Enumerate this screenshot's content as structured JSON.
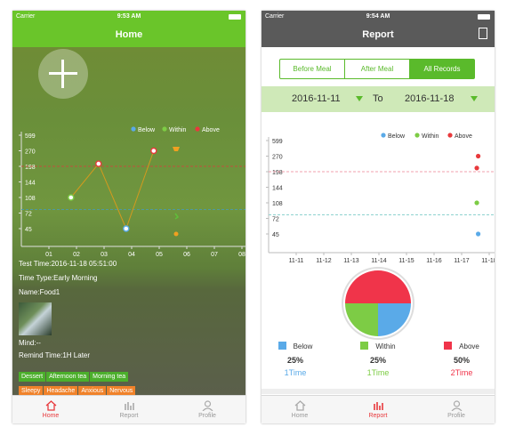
{
  "home": {
    "status": {
      "carrier": "Carrier",
      "time": "9:53 AM"
    },
    "title": "Home",
    "legend": {
      "below": "Below",
      "within": "Within",
      "above": "Above"
    },
    "chart_data": {
      "type": "line",
      "yticks": [
        "599",
        "270",
        "198",
        "144",
        "108",
        "72",
        "45"
      ],
      "xticks": [
        "01",
        "02",
        "03",
        "04",
        "05",
        "06",
        "07",
        "08"
      ],
      "points": [
        {
          "x": 1.8,
          "label": "108",
          "status": "within"
        },
        {
          "x": 2.8,
          "label": "210",
          "status": "above"
        },
        {
          "x": 3.8,
          "label": "45",
          "status": "below"
        },
        {
          "x": 4.8,
          "label": "270",
          "status": "above"
        }
      ],
      "upper_threshold": "198",
      "lower_threshold": "72"
    },
    "detail": {
      "test_time": "Test Time:2016-11-18 05:51:00",
      "time_type": "Time Type:Early Morning",
      "name": "Name:Food1",
      "mind": "Mind:--",
      "remind": "Remind Time:1H Later"
    },
    "tags_green": [
      "Dessert",
      "Afternoon tea",
      "Morning tea"
    ],
    "tags_orange": [
      "Sleepy",
      "Headache",
      "Anxious",
      "Nervous"
    ],
    "tabs": [
      {
        "label": "Home",
        "active": true
      },
      {
        "label": "Report",
        "active": false
      },
      {
        "label": "Profile",
        "active": false
      }
    ]
  },
  "report": {
    "status": {
      "carrier": "Carrier",
      "time": "9:54 AM"
    },
    "title": "Report",
    "segments": [
      "Before Meal",
      "After Meal",
      "All Records"
    ],
    "date_from": "2016-11-11",
    "date_to_label": "To",
    "date_to": "2016-11-18",
    "legend": {
      "below": "Below",
      "within": "Within",
      "above": "Above"
    },
    "chart_data": {
      "type": "scatter",
      "yticks": [
        "599",
        "270",
        "198",
        "144",
        "108",
        "72",
        "45"
      ],
      "xticks": [
        "11-11",
        "11-12",
        "11-13",
        "11-14",
        "11-15",
        "11-16",
        "11-17",
        "11-18"
      ],
      "points": [
        {
          "x": 7.6,
          "label": "270",
          "status": "above"
        },
        {
          "x": 7.55,
          "label": "215",
          "status": "above"
        },
        {
          "x": 7.55,
          "label": "108",
          "status": "within"
        },
        {
          "x": 7.6,
          "label": "45",
          "status": "below"
        }
      ]
    },
    "pie_data": [
      {
        "name": "Below",
        "percent": 25,
        "color": "#5aaae8"
      },
      {
        "name": "Within",
        "percent": 25,
        "color": "#7dcc45"
      },
      {
        "name": "Above",
        "percent": 50,
        "color": "#f0344a"
      }
    ],
    "stats": [
      {
        "name": "Below",
        "pct": "25%",
        "times": "1Time",
        "color": "#5aaae8"
      },
      {
        "name": "Within",
        "pct": "25%",
        "times": "1Time",
        "color": "#7dcc45"
      },
      {
        "name": "Above",
        "pct": "50%",
        "times": "2Time",
        "color": "#f0344a"
      }
    ],
    "tabs": [
      {
        "label": "Home",
        "active": false
      },
      {
        "label": "Report",
        "active": true
      },
      {
        "label": "Profile",
        "active": false
      }
    ]
  },
  "colors": {
    "green": "#6ac52a",
    "below": "#5aaae8",
    "within": "#7dcc45",
    "above": "#e8393c",
    "accent_red": "#e8393c"
  }
}
